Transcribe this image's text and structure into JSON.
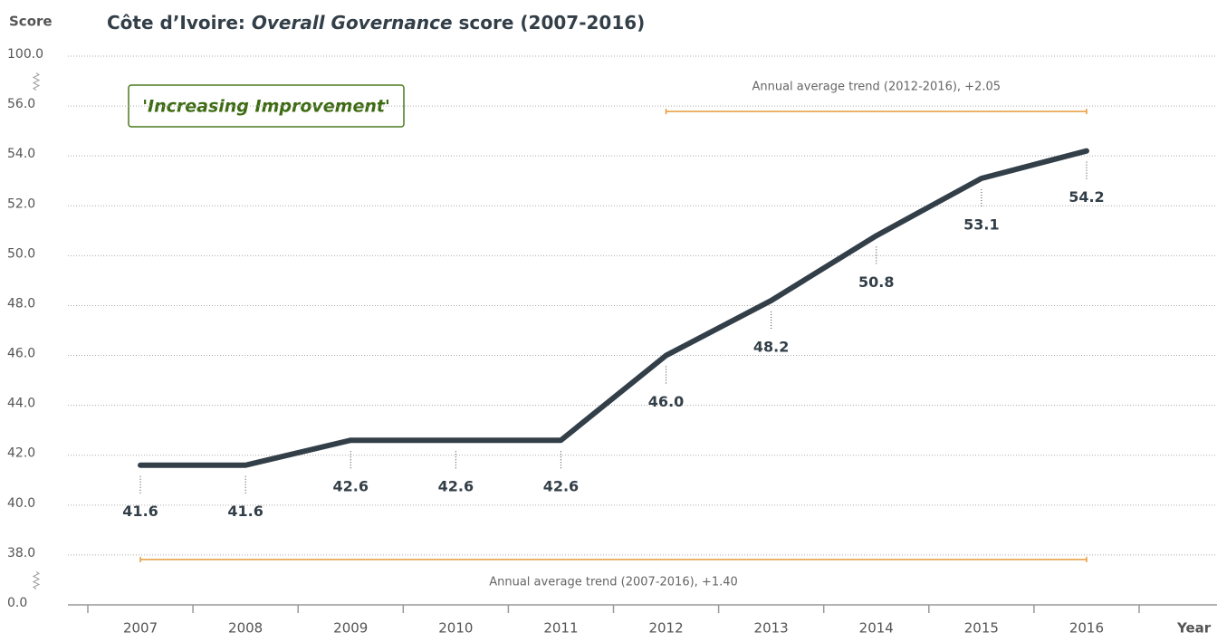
{
  "chart_data": {
    "type": "line",
    "title_parts": [
      "Côte d’Ivoire: ",
      "Overall Governance",
      " score (2007-2016)"
    ],
    "y_label": "Score",
    "x_label": "Year",
    "badge": "'Increasing Improvement'",
    "categories": [
      "2007",
      "2008",
      "2009",
      "2010",
      "2011",
      "2012",
      "2013",
      "2014",
      "2015",
      "2016"
    ],
    "series": [
      {
        "name": "Overall Governance",
        "color": "#333f48",
        "values": [
          41.6,
          41.6,
          42.6,
          42.6,
          42.6,
          46.0,
          48.2,
          50.8,
          53.1,
          54.2
        ],
        "value_labels": [
          "41.6",
          "41.6",
          "42.6",
          "42.6",
          "42.6",
          "46.0",
          "48.2",
          "50.8",
          "53.1",
          "54.2"
        ]
      }
    ],
    "ylim": [
      0,
      100
    ],
    "yticks": [
      {
        "value": 0,
        "label": "0.0"
      },
      {
        "value": 38,
        "label": "38.0"
      },
      {
        "value": 40,
        "label": "40.0"
      },
      {
        "value": 42,
        "label": "42.0"
      },
      {
        "value": 44,
        "label": "44.0"
      },
      {
        "value": 46,
        "label": "46.0"
      },
      {
        "value": 48,
        "label": "48.0"
      },
      {
        "value": 50,
        "label": "50.0"
      },
      {
        "value": 52,
        "label": "52.0"
      },
      {
        "value": 54,
        "label": "54.0"
      },
      {
        "value": 56,
        "label": "56.0"
      },
      {
        "value": 100,
        "label": "100.0"
      }
    ],
    "y_axis_break": true,
    "grid": true,
    "annotations": [
      {
        "text": "Annual average trend (2012-2016), +2.05",
        "from": "2012",
        "to": "2016",
        "color": "#e69b3a"
      },
      {
        "text": "Annual average trend (2007-2016), +1.40",
        "from": "2007",
        "to": "2016",
        "color": "#e69b3a"
      }
    ]
  }
}
